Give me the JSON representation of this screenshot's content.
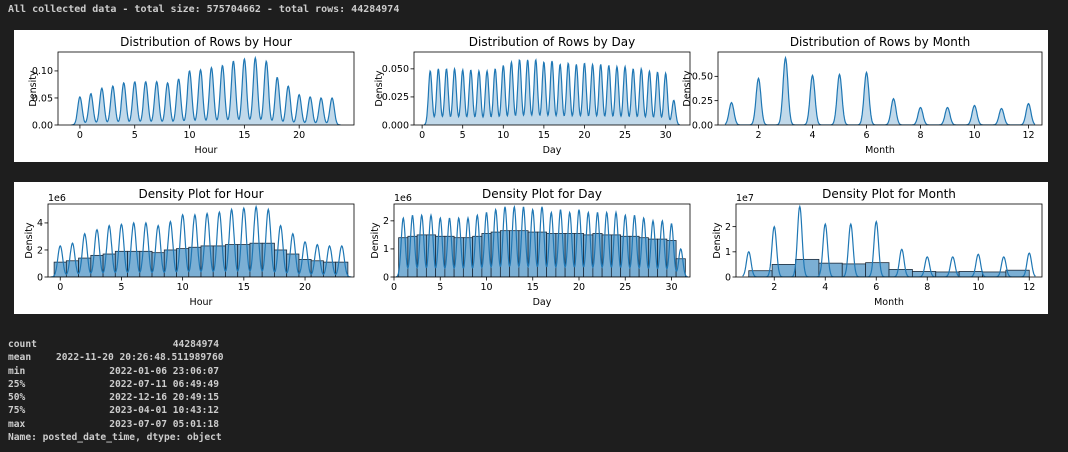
{
  "header": {
    "summary": "All collected data - total size: 575704662 - total rows: 44284974"
  },
  "chart_data": [
    {
      "type": "area",
      "kind": "kde",
      "title": "Distribution of Rows by Hour",
      "xlabel": "Hour",
      "ylabel": "Density",
      "xlim": [
        -2,
        25
      ],
      "ylim": [
        0,
        0.135
      ],
      "xticks": [
        0,
        5,
        10,
        15,
        20
      ],
      "xtick_labels": [
        "0",
        "5",
        "10",
        "15",
        "20"
      ],
      "yticks": [
        0,
        0.05,
        0.1
      ],
      "ytick_labels": [
        "0.00",
        "0.05",
        "0.10"
      ],
      "peaks_x": [
        0,
        1,
        2,
        3,
        4,
        5,
        6,
        7,
        8,
        9,
        10,
        11,
        12,
        13,
        14,
        15,
        16,
        17,
        18,
        19,
        20,
        21,
        22,
        23
      ],
      "peaks_y": [
        0.052,
        0.058,
        0.068,
        0.072,
        0.078,
        0.08,
        0.08,
        0.08,
        0.078,
        0.085,
        0.1,
        0.102,
        0.106,
        0.11,
        0.118,
        0.122,
        0.124,
        0.118,
        0.088,
        0.072,
        0.056,
        0.052,
        0.05,
        0.05
      ]
    },
    {
      "type": "area",
      "kind": "kde",
      "title": "Distribution of Rows by Day",
      "xlabel": "Day",
      "ylabel": "Density",
      "xlim": [
        -1,
        33
      ],
      "ylim": [
        0,
        0.065
      ],
      "xticks": [
        0,
        5,
        10,
        15,
        20,
        25,
        30
      ],
      "xtick_labels": [
        "0",
        "5",
        "10",
        "15",
        "20",
        "25",
        "30"
      ],
      "yticks": [
        0,
        0.025,
        0.05
      ],
      "ytick_labels": [
        "0.000",
        "0.025",
        "0.050"
      ],
      "peaks_x": [
        1,
        2,
        3,
        4,
        5,
        6,
        7,
        8,
        9,
        10,
        11,
        12,
        13,
        14,
        15,
        16,
        17,
        18,
        19,
        20,
        21,
        22,
        23,
        24,
        25,
        26,
        27,
        28,
        29,
        30,
        31
      ],
      "peaks_y": [
        0.048,
        0.05,
        0.05,
        0.05,
        0.049,
        0.049,
        0.048,
        0.048,
        0.05,
        0.053,
        0.056,
        0.058,
        0.058,
        0.058,
        0.056,
        0.057,
        0.054,
        0.055,
        0.054,
        0.055,
        0.054,
        0.054,
        0.053,
        0.052,
        0.052,
        0.05,
        0.05,
        0.048,
        0.047,
        0.046,
        0.022
      ]
    },
    {
      "type": "area",
      "kind": "kde",
      "title": "Distribution of Rows by Month",
      "xlabel": "Month",
      "ylabel": "Density",
      "xlim": [
        0.5,
        12.5
      ],
      "ylim": [
        0,
        0.75
      ],
      "xticks": [
        2,
        4,
        6,
        8,
        10,
        12
      ],
      "xtick_labels": [
        "2",
        "4",
        "6",
        "8",
        "10",
        "12"
      ],
      "yticks": [
        0,
        0.25,
        0.5
      ],
      "ytick_labels": [
        "0.00",
        "0.25",
        "0.50"
      ],
      "peaks_x": [
        1,
        2,
        3,
        4,
        5,
        6,
        7,
        8,
        9,
        10,
        11,
        12
      ],
      "peaks_y": [
        0.23,
        0.48,
        0.69,
        0.51,
        0.52,
        0.54,
        0.27,
        0.18,
        0.18,
        0.2,
        0.17,
        0.22
      ]
    },
    {
      "type": "bar",
      "kind": "histogram+kde",
      "title": "Density Plot for Hour",
      "xlabel": "Hour",
      "ylabel": "Density",
      "offset_label": "1e6",
      "xlim": [
        -1,
        24
      ],
      "ylim": [
        0,
        5.4
      ],
      "xticks": [
        0,
        5,
        10,
        15,
        20
      ],
      "xtick_labels": [
        "0",
        "5",
        "10",
        "15",
        "20"
      ],
      "yticks": [
        0,
        2,
        4
      ],
      "ytick_labels": [
        "0",
        "2",
        "4"
      ],
      "bins": [
        0,
        1,
        2,
        3,
        4,
        5,
        6,
        7,
        8,
        9,
        10,
        11,
        12,
        13,
        14,
        15,
        16,
        17,
        18,
        19,
        20,
        21,
        22,
        23
      ],
      "values": [
        1.1,
        1.2,
        1.4,
        1.6,
        1.7,
        1.9,
        1.9,
        1.9,
        1.8,
        2.0,
        2.1,
        2.2,
        2.3,
        2.3,
        2.4,
        2.4,
        2.5,
        2.5,
        2.0,
        1.7,
        1.3,
        1.2,
        1.1,
        1.1
      ],
      "kde_peaks": [
        2.3,
        2.5,
        3.2,
        3.5,
        3.8,
        3.9,
        4.0,
        4.0,
        3.8,
        4.1,
        4.6,
        4.6,
        4.7,
        4.8,
        5.0,
        5.1,
        5.2,
        5.0,
        3.8,
        3.2,
        2.6,
        2.4,
        2.3,
        2.3
      ]
    },
    {
      "type": "bar",
      "kind": "histogram+kde",
      "title": "Density Plot for Day",
      "xlabel": "Day",
      "ylabel": "Density",
      "offset_label": "1e6",
      "xlim": [
        0,
        32
      ],
      "ylim": [
        0,
        2.6
      ],
      "xticks": [
        0,
        5,
        10,
        15,
        20,
        25,
        30
      ],
      "xtick_labels": [
        "0",
        "5",
        "10",
        "15",
        "20",
        "25",
        "30"
      ],
      "yticks": [
        0,
        1,
        2
      ],
      "ytick_labels": [
        "0",
        "1",
        "2"
      ],
      "bins": [
        1,
        2,
        3,
        4,
        5,
        6,
        7,
        8,
        9,
        10,
        11,
        12,
        13,
        14,
        15,
        16,
        17,
        18,
        19,
        20,
        21,
        22,
        23,
        24,
        25,
        26,
        27,
        28,
        29,
        30,
        31
      ],
      "values": [
        1.4,
        1.45,
        1.5,
        1.5,
        1.45,
        1.45,
        1.4,
        1.4,
        1.45,
        1.55,
        1.6,
        1.65,
        1.65,
        1.65,
        1.6,
        1.6,
        1.55,
        1.55,
        1.55,
        1.55,
        1.5,
        1.55,
        1.5,
        1.5,
        1.45,
        1.45,
        1.4,
        1.35,
        1.35,
        1.3,
        0.65
      ],
      "kde_peaks": [
        2.1,
        2.2,
        2.2,
        2.2,
        2.1,
        2.1,
        2.1,
        2.1,
        2.2,
        2.3,
        2.4,
        2.5,
        2.5,
        2.5,
        2.4,
        2.5,
        2.3,
        2.4,
        2.3,
        2.4,
        2.3,
        2.3,
        2.3,
        2.3,
        2.2,
        2.2,
        2.1,
        2.0,
        2.0,
        1.9,
        1.0
      ]
    },
    {
      "type": "bar",
      "kind": "histogram+kde",
      "title": "Density Plot for Month",
      "xlabel": "Month",
      "ylabel": "Density",
      "offset_label": "1e7",
      "xlim": [
        0.5,
        12.5
      ],
      "ylim": [
        0,
        2.9
      ],
      "xticks": [
        2,
        4,
        6,
        8,
        10,
        12
      ],
      "xtick_labels": [
        "2",
        "4",
        "6",
        "8",
        "10",
        "12"
      ],
      "yticks": [
        0,
        1,
        2
      ],
      "ytick_labels": [
        "0",
        "1",
        "2"
      ],
      "bin_edges": [
        1.0,
        1.917,
        2.833,
        3.75,
        4.667,
        5.583,
        6.5,
        7.417,
        8.333,
        9.25,
        10.167,
        11.083,
        12.0
      ],
      "values": [
        0.25,
        0.5,
        0.7,
        0.55,
        0.52,
        0.57,
        0.3,
        0.22,
        0.2,
        0.22,
        0.2,
        0.27
      ],
      "kde_peaks_x": [
        1,
        2,
        3,
        4,
        5,
        6,
        7,
        8,
        9,
        10,
        11,
        12
      ],
      "kde_peaks": [
        1.0,
        2.0,
        2.8,
        2.1,
        2.1,
        2.2,
        1.1,
        0.8,
        0.8,
        0.9,
        0.8,
        0.95
      ]
    }
  ],
  "stats": {
    "rows": [
      {
        "key": "count",
        "value": "44284974"
      },
      {
        "key": "mean",
        "value": "2022-11-20 20:26:48.511989760"
      },
      {
        "key": "min",
        "value": "2022-01-06 23:06:07"
      },
      {
        "key": "25%",
        "value": "2022-07-11 06:49:49"
      },
      {
        "key": "50%",
        "value": "2022-12-16 20:49:15"
      },
      {
        "key": "75%",
        "value": "2023-04-01 10:43:12"
      },
      {
        "key": "max",
        "value": "2023-07-07 05:01:18"
      }
    ],
    "footer": "Name: posted_date_time, dtype: object"
  },
  "colors": {
    "line": "#1f77b4",
    "fill": "#1f77b4",
    "bar": "#7bafd4",
    "bar_edge": "#1b2a3a",
    "axis": "#000000"
  }
}
